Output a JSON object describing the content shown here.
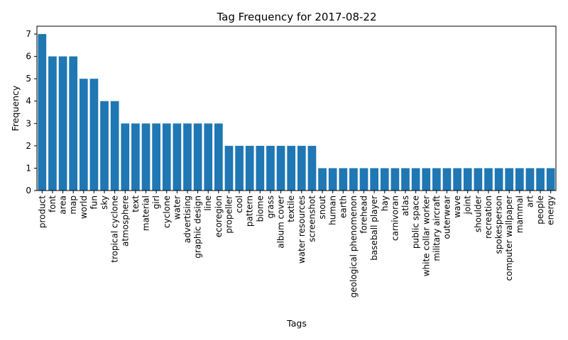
{
  "chart_data": {
    "type": "bar",
    "title": "Tag Frequency for 2017-08-22",
    "xlabel": "Tags",
    "ylabel": "Frequency",
    "ylim": [
      0,
      7.35
    ],
    "yticks": [
      0,
      1,
      2,
      3,
      4,
      5,
      6,
      7
    ],
    "grid": false,
    "bar_color": "#1f77b4",
    "categories": [
      "product",
      "font",
      "area",
      "map",
      "world",
      "fun",
      "sky",
      "tropical cyclone",
      "atmosphere",
      "text",
      "material",
      "girl",
      "cyclone",
      "water",
      "advertising",
      "graphic design",
      "line",
      "ecoregion",
      "propeller",
      "cool",
      "pattern",
      "biome",
      "grass",
      "album cover",
      "textile",
      "water resources",
      "screenshot",
      "snout",
      "human",
      "earth",
      "geological phenomenon",
      "forehead",
      "baseball player",
      "hay",
      "carnivoran",
      "atlas",
      "public space",
      "white collar worker",
      "military aircraft",
      "outerwear",
      "wave",
      "joint",
      "shoulder",
      "recreation",
      "spokesperson",
      "computer wallpaper",
      "mammal",
      "art",
      "people",
      "energy"
    ],
    "values": [
      7,
      6,
      6,
      6,
      5,
      5,
      4,
      4,
      3,
      3,
      3,
      3,
      3,
      3,
      3,
      3,
      3,
      3,
      2,
      2,
      2,
      2,
      2,
      2,
      2,
      2,
      2,
      1,
      1,
      1,
      1,
      1,
      1,
      1,
      1,
      1,
      1,
      1,
      1,
      1,
      1,
      1,
      1,
      1,
      1,
      1,
      1,
      1,
      1,
      1
    ]
  }
}
